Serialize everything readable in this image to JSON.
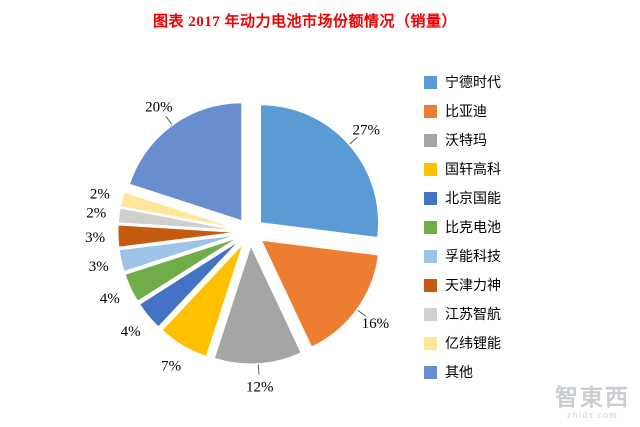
{
  "title": "图表 2017 年动力电池市场份额情况（销量）",
  "chart_data": {
    "type": "pie",
    "title": "2017 年动力电池市场份额情况（销量）",
    "exploded": true,
    "legend_position": "right",
    "unit": "%",
    "labels": [
      "宁德时代",
      "比亚迪",
      "沃特玛",
      "国轩高科",
      "北京国能",
      "比克电池",
      "孚能科技",
      "天津力神",
      "江苏智航",
      "亿纬锂能",
      "其他"
    ],
    "values": [
      27,
      16,
      12,
      7,
      4,
      4,
      3,
      3,
      2,
      2,
      20
    ],
    "data_labels": [
      "27%",
      "16%",
      "12%",
      "7%",
      "4%",
      "4%",
      "3%",
      "3%",
      "2%",
      "2%",
      "20%"
    ],
    "colors": [
      "#5B9BD5",
      "#ED7D31",
      "#A5A5A5",
      "#FFC000",
      "#4472C4",
      "#70AD47",
      "#9DC3E6",
      "#C55A11",
      "#D0CECE",
      "#FFE699",
      "#698ED0"
    ]
  },
  "watermark": {
    "logo": "智東西",
    "url": "zhidx.com"
  },
  "style_colors": {
    "title": "#F00000",
    "label": "#000000",
    "watermark": "#C9CDD2"
  }
}
